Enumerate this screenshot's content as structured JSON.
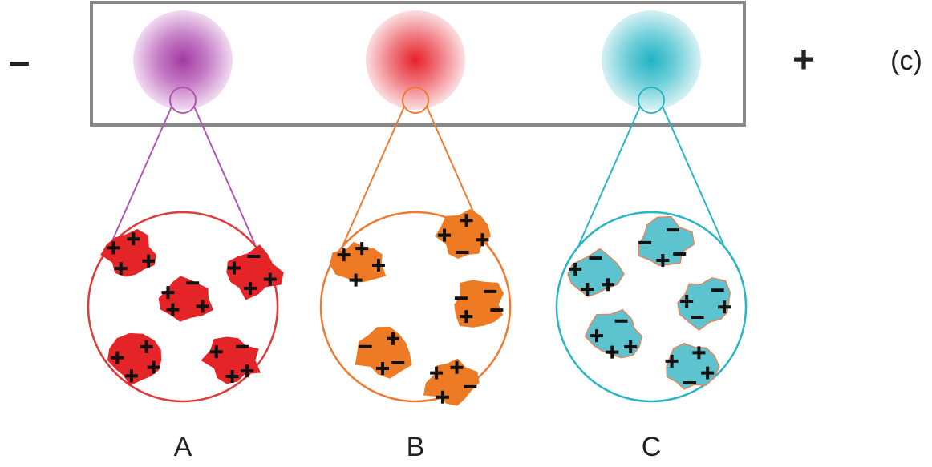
{
  "gel": {
    "negative_label": "–",
    "positive_label": "+",
    "panel_label": "(c)"
  },
  "samples": [
    {
      "label": "A"
    },
    {
      "label": "B"
    },
    {
      "label": "C"
    }
  ]
}
